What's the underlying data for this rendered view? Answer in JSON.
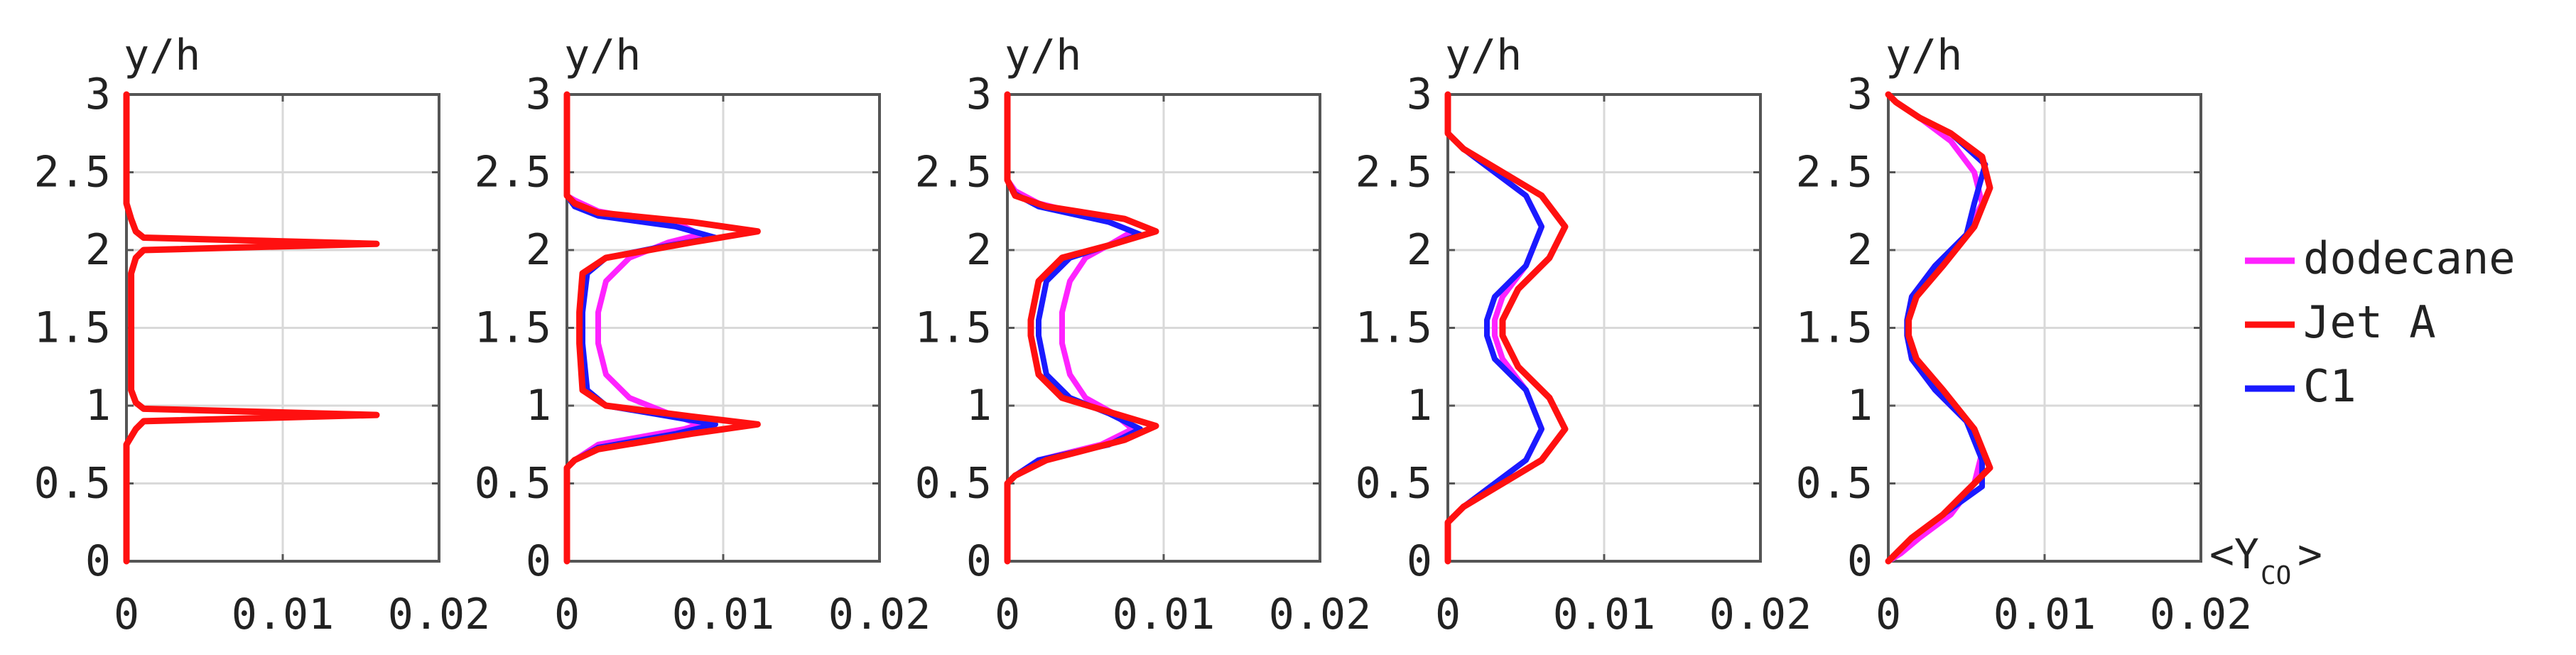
{
  "chart_data": {
    "type": "line",
    "colors": {
      "dodecane": "#ff22ff",
      "jet_a": "#ff1010",
      "c1": "#1a1aff",
      "grid": "#d9d9d9",
      "axis": "#555555"
    },
    "ylabel": "y/h",
    "xlabel": "<Y",
    "xlabel_sub": "CO",
    "xlabel_end": ">",
    "xlim": [
      0,
      0.02
    ],
    "ylim": [
      0,
      3
    ],
    "xticks": [
      "0",
      "0.01",
      "0.02"
    ],
    "yticks": [
      "0",
      "0.5",
      "1",
      "1.5",
      "2",
      "2.5",
      "3"
    ],
    "legend": {
      "position": "right",
      "entries": [
        "dodecane",
        "Jet A",
        "C1"
      ]
    },
    "grid": true,
    "panels": [
      {
        "series": [
          {
            "name": "dodecane",
            "x": [
              0,
              0,
              0.0003,
              0.0006,
              0.0011,
              0.016,
              0.0011,
              0.0006,
              0.0003,
              0.0003,
              0.0006,
              0.0011,
              0.016,
              0.0011,
              0.0006,
              0.0003,
              0,
              0
            ],
            "y": [
              0,
              0.75,
              0.8,
              0.85,
              0.9,
              0.94,
              0.98,
              1.02,
              1.1,
              1.85,
              1.95,
              2.0,
              2.04,
              2.08,
              2.12,
              2.2,
              2.3,
              3.0
            ]
          },
          {
            "name": "Jet A",
            "x": [
              0,
              0,
              0.0003,
              0.0006,
              0.0011,
              0.016,
              0.0011,
              0.0006,
              0.0003,
              0.0003,
              0.0006,
              0.0011,
              0.016,
              0.0011,
              0.0006,
              0.0003,
              0,
              0
            ],
            "y": [
              0,
              0.75,
              0.8,
              0.85,
              0.9,
              0.94,
              0.98,
              1.02,
              1.1,
              1.85,
              1.95,
              2.0,
              2.04,
              2.08,
              2.12,
              2.2,
              2.3,
              3.0
            ]
          },
          {
            "name": "C1",
            "x": [
              0,
              0,
              0.0003,
              0.0006,
              0.0011,
              0.016,
              0.0011,
              0.0006,
              0.0003,
              0.0003,
              0.0006,
              0.0011,
              0.016,
              0.0011,
              0.0006,
              0.0003,
              0,
              0
            ],
            "y": [
              0,
              0.75,
              0.8,
              0.85,
              0.9,
              0.94,
              0.98,
              1.02,
              1.1,
              1.85,
              1.95,
              2.0,
              2.04,
              2.08,
              2.12,
              2.2,
              2.3,
              3.0
            ]
          }
        ]
      },
      {
        "series": [
          {
            "name": "dodecane",
            "x": [
              0,
              0,
              0.0005,
              0.002,
              0.0075,
              0.0085,
              0.0065,
              0.004,
              0.0025,
              0.002,
              0.002,
              0.0025,
              0.004,
              0.0065,
              0.0085,
              0.0075,
              0.002,
              0.0005,
              0,
              0
            ],
            "y": [
              0,
              0.6,
              0.65,
              0.75,
              0.85,
              0.88,
              0.95,
              1.05,
              1.2,
              1.4,
              1.6,
              1.8,
              1.95,
              2.05,
              2.1,
              2.15,
              2.25,
              2.32,
              2.35,
              3.0
            ]
          },
          {
            "name": "Jet A",
            "x": [
              0,
              0,
              0.0005,
              0.002,
              0.008,
              0.0122,
              0.008,
              0.0025,
              0.001,
              0.0008,
              0.0008,
              0.001,
              0.0025,
              0.008,
              0.0122,
              0.008,
              0.002,
              0.0005,
              0,
              0
            ],
            "y": [
              0,
              0.6,
              0.65,
              0.72,
              0.82,
              0.88,
              0.93,
              1.0,
              1.1,
              1.4,
              1.6,
              1.85,
              1.95,
              2.05,
              2.12,
              2.18,
              2.24,
              2.3,
              2.35,
              3.0
            ]
          },
          {
            "name": "C1",
            "x": [
              0,
              0,
              0.0005,
              0.002,
              0.007,
              0.0095,
              0.006,
              0.0025,
              0.0013,
              0.001,
              0.001,
              0.0013,
              0.0025,
              0.006,
              0.0095,
              0.007,
              0.002,
              0.0005,
              0,
              0
            ],
            "y": [
              0,
              0.6,
              0.65,
              0.73,
              0.82,
              0.88,
              0.94,
              1.0,
              1.1,
              1.4,
              1.6,
              1.85,
              1.95,
              2.02,
              2.08,
              2.15,
              2.22,
              2.28,
              2.35,
              3.0
            ]
          }
        ]
      },
      {
        "series": [
          {
            "name": "dodecane",
            "x": [
              0,
              0,
              0.0005,
              0.002,
              0.006,
              0.008,
              0.0068,
              0.005,
              0.004,
              0.0035,
              0.0035,
              0.004,
              0.005,
              0.0068,
              0.008,
              0.006,
              0.002,
              0.0005,
              0,
              0
            ],
            "y": [
              0,
              0.5,
              0.55,
              0.65,
              0.75,
              0.85,
              0.95,
              1.05,
              1.2,
              1.4,
              1.6,
              1.8,
              1.95,
              2.05,
              2.12,
              2.2,
              2.3,
              2.38,
              2.45,
              3.0
            ]
          },
          {
            "name": "Jet A",
            "x": [
              0,
              0,
              0.0005,
              0.0025,
              0.0075,
              0.0095,
              0.0065,
              0.0035,
              0.002,
              0.0015,
              0.0015,
              0.002,
              0.0035,
              0.0065,
              0.0095,
              0.0075,
              0.0025,
              0.0005,
              0,
              0
            ],
            "y": [
              0,
              0.5,
              0.55,
              0.65,
              0.78,
              0.87,
              0.96,
              1.05,
              1.2,
              1.45,
              1.55,
              1.8,
              1.95,
              2.03,
              2.12,
              2.2,
              2.28,
              2.35,
              2.45,
              3.0
            ]
          },
          {
            "name": "C1",
            "x": [
              0,
              0,
              0.0005,
              0.002,
              0.0065,
              0.0085,
              0.0065,
              0.004,
              0.0025,
              0.002,
              0.002,
              0.0025,
              0.004,
              0.0065,
              0.0085,
              0.0065,
              0.002,
              0.0005,
              0,
              0
            ],
            "y": [
              0,
              0.5,
              0.55,
              0.65,
              0.75,
              0.85,
              0.95,
              1.05,
              1.2,
              1.45,
              1.55,
              1.8,
              1.95,
              2.03,
              2.1,
              2.18,
              2.28,
              2.36,
              2.45,
              3.0
            ]
          }
        ]
      },
      {
        "series": [
          {
            "name": "dodecane",
            "x": [
              0,
              0,
              0.001,
              0.003,
              0.005,
              0.006,
              0.005,
              0.0035,
              0.003,
              0.003,
              0.0035,
              0.005,
              0.006,
              0.005,
              0.003,
              0.001,
              0,
              0
            ],
            "y": [
              0,
              0.25,
              0.35,
              0.5,
              0.65,
              0.85,
              1.1,
              1.3,
              1.45,
              1.55,
              1.7,
              1.9,
              2.15,
              2.35,
              2.5,
              2.65,
              2.75,
              3.0
            ]
          },
          {
            "name": "Jet A",
            "x": [
              0,
              0,
              0.001,
              0.0035,
              0.006,
              0.0075,
              0.0065,
              0.0045,
              0.0035,
              0.0035,
              0.0045,
              0.0065,
              0.0075,
              0.006,
              0.0035,
              0.001,
              0,
              0
            ],
            "y": [
              0,
              0.25,
              0.35,
              0.5,
              0.65,
              0.85,
              1.05,
              1.25,
              1.45,
              1.55,
              1.75,
              1.95,
              2.15,
              2.35,
              2.5,
              2.65,
              2.75,
              3.0
            ]
          },
          {
            "name": "C1",
            "x": [
              0,
              0,
              0.001,
              0.003,
              0.005,
              0.006,
              0.005,
              0.003,
              0.0025,
              0.0025,
              0.003,
              0.005,
              0.006,
              0.005,
              0.003,
              0.001,
              0,
              0
            ],
            "y": [
              0,
              0.25,
              0.35,
              0.5,
              0.65,
              0.85,
              1.1,
              1.3,
              1.45,
              1.55,
              1.7,
              1.9,
              2.15,
              2.35,
              2.5,
              2.65,
              2.75,
              3.0
            ]
          }
        ]
      },
      {
        "series": [
          {
            "name": "dodecane",
            "x": [
              0,
              0.0008,
              0.002,
              0.004,
              0.0055,
              0.006,
              0.005,
              0.003,
              0.0015,
              0.0012,
              0.0012,
              0.0015,
              0.003,
              0.005,
              0.006,
              0.0055,
              0.004,
              0.002,
              0.0005,
              0
            ],
            "y": [
              0,
              0.05,
              0.15,
              0.3,
              0.5,
              0.7,
              0.9,
              1.1,
              1.3,
              1.45,
              1.55,
              1.7,
              1.9,
              2.1,
              2.3,
              2.5,
              2.7,
              2.85,
              2.95,
              3.0
            ]
          },
          {
            "name": "Jet A",
            "x": [
              0,
              0.0005,
              0.0015,
              0.0035,
              0.005,
              0.0065,
              0.0055,
              0.0035,
              0.0018,
              0.0013,
              0.0013,
              0.0018,
              0.0035,
              0.0055,
              0.0065,
              0.006,
              0.004,
              0.002,
              0.0005,
              0
            ],
            "y": [
              0,
              0.05,
              0.15,
              0.3,
              0.45,
              0.6,
              0.85,
              1.1,
              1.3,
              1.45,
              1.55,
              1.7,
              1.9,
              2.15,
              2.4,
              2.6,
              2.75,
              2.85,
              2.95,
              3.0
            ]
          },
          {
            "name": "C1",
            "x": [
              0,
              0.0005,
              0.0015,
              0.0035,
              0.006,
              0.006,
              0.005,
              0.003,
              0.0015,
              0.0012,
              0.0012,
              0.0015,
              0.003,
              0.005,
              0.0055,
              0.0062,
              0.004,
              0.002,
              0.0005,
              0
            ],
            "y": [
              0,
              0.05,
              0.15,
              0.3,
              0.48,
              0.65,
              0.9,
              1.1,
              1.3,
              1.45,
              1.55,
              1.7,
              1.9,
              2.1,
              2.3,
              2.55,
              2.75,
              2.85,
              2.95,
              3.0
            ]
          }
        ]
      }
    ]
  }
}
